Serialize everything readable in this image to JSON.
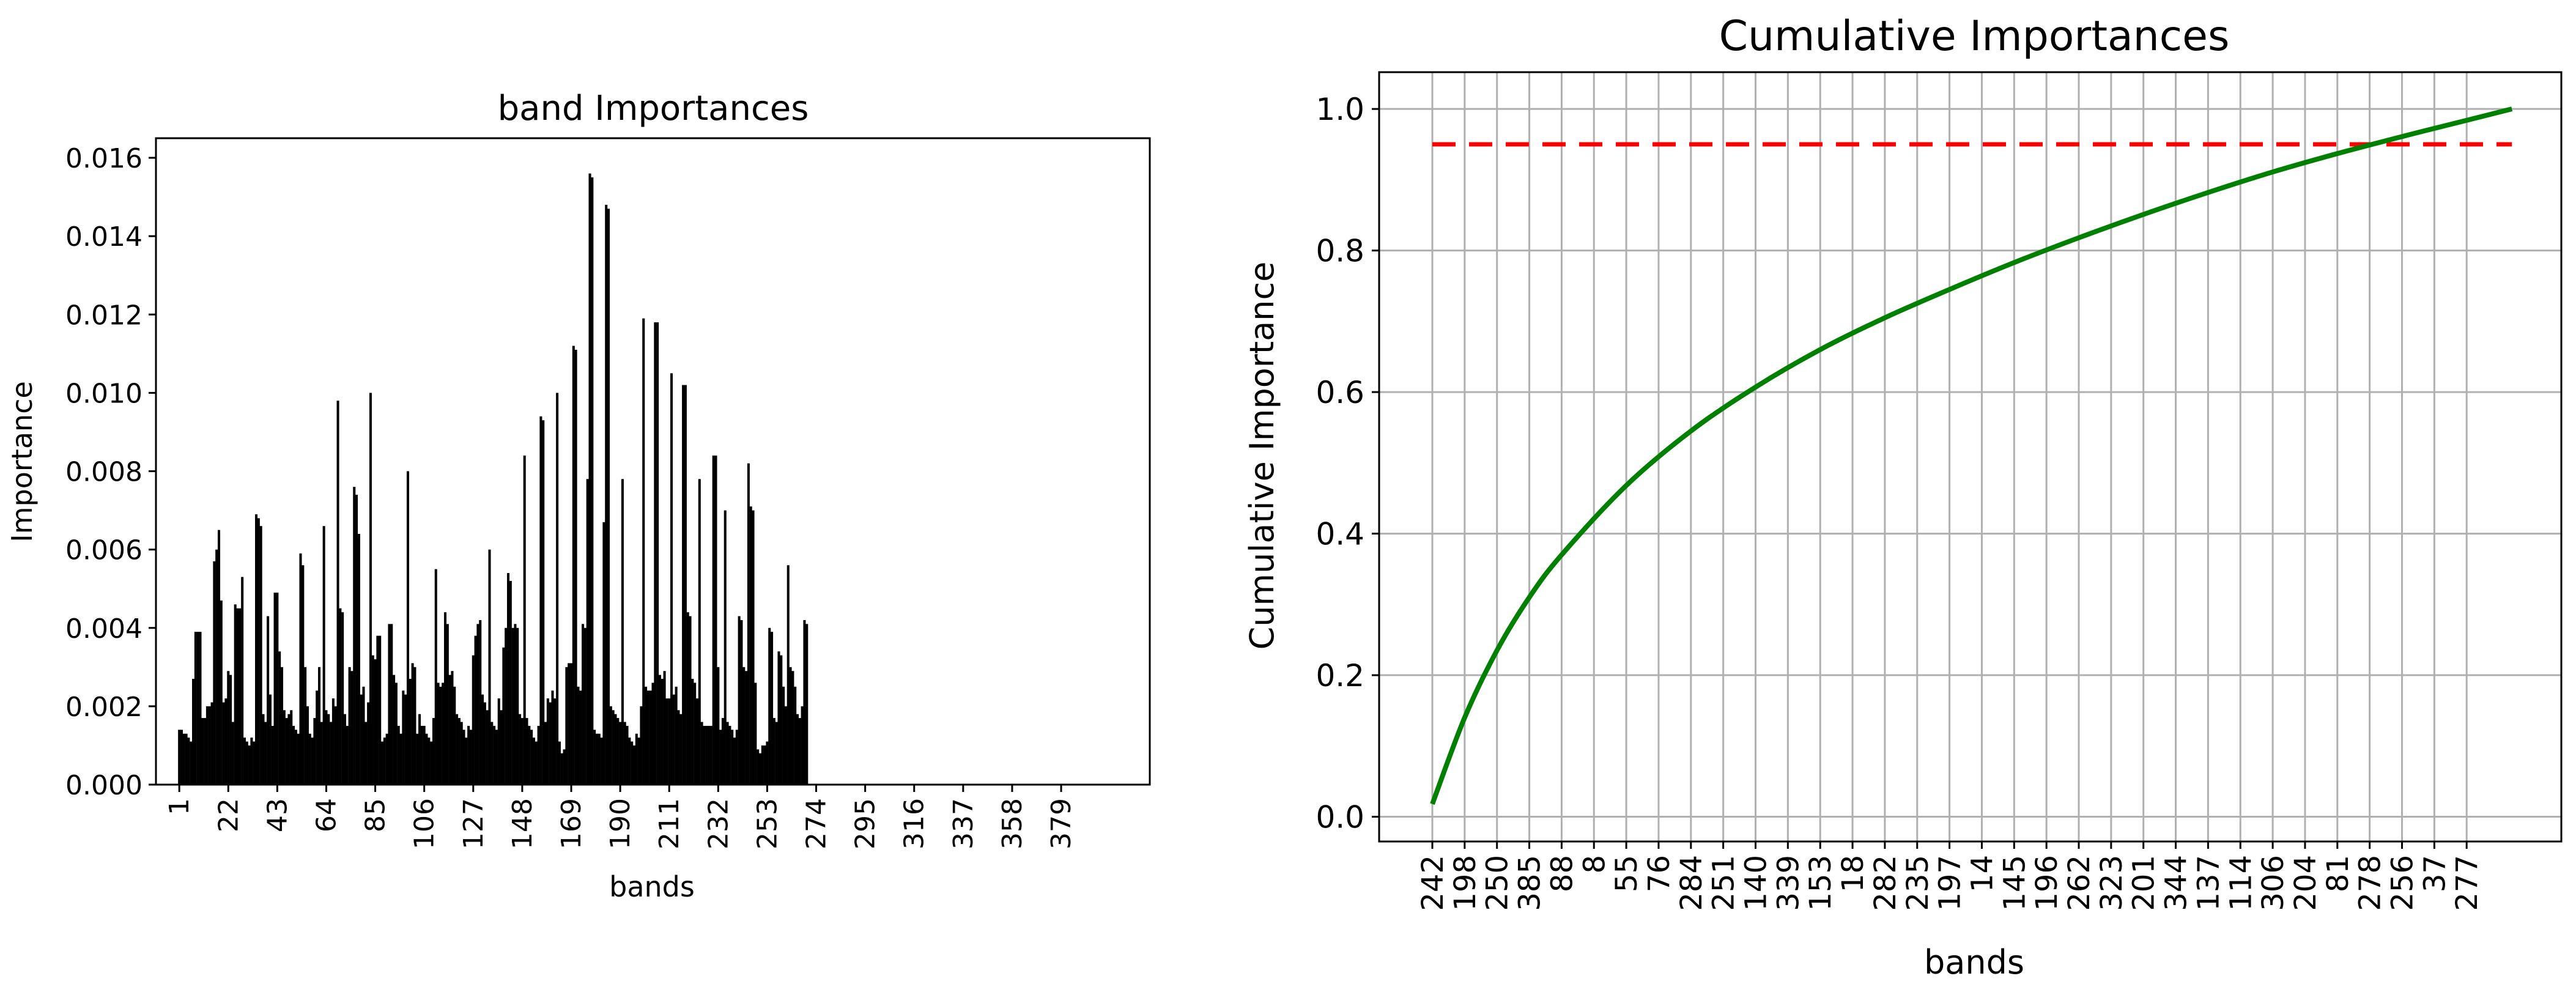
{
  "chart_data": [
    {
      "type": "bar",
      "title": "band Importances",
      "xlabel": "bands",
      "ylabel": "Importance",
      "ylim": [
        0,
        0.0165
      ],
      "xlim": [
        -9,
        417
      ],
      "yticks": [
        0.0,
        0.002,
        0.004,
        0.006,
        0.008,
        0.01,
        0.012,
        0.014,
        0.016
      ],
      "ytick_labels": [
        "0.000",
        "0.002",
        "0.004",
        "0.006",
        "0.008",
        "0.010",
        "0.012",
        "0.014",
        "0.016"
      ],
      "xticks": [
        1,
        22,
        43,
        64,
        85,
        106,
        127,
        148,
        169,
        190,
        211,
        232,
        253,
        274,
        295,
        316,
        337,
        358,
        379
      ],
      "xtick_labels": [
        "1",
        "22",
        "43",
        "64",
        "85",
        "106",
        "127",
        "148",
        "169",
        "190",
        "211",
        "232",
        "253",
        "274",
        "295",
        "316",
        "337",
        "358",
        "379"
      ],
      "bar_color": "#000000",
      "band_start": 1,
      "values": [
        0.0014,
        0.0014,
        0.0013,
        0.0013,
        0.0012,
        0.0011,
        0.0027,
        0.0039,
        0.0039,
        0.0039,
        0.0017,
        0.0017,
        0.002,
        0.002,
        0.0021,
        0.0057,
        0.006,
        0.0065,
        0.0047,
        0.0021,
        0.0022,
        0.0029,
        0.0028,
        0.0016,
        0.0046,
        0.0045,
        0.0045,
        0.0053,
        0.0012,
        0.0011,
        0.001,
        0.0012,
        0.0011,
        0.0069,
        0.0068,
        0.0066,
        0.0018,
        0.0016,
        0.0043,
        0.0023,
        0.0015,
        0.0049,
        0.0049,
        0.0034,
        0.003,
        0.0019,
        0.0017,
        0.0018,
        0.0019,
        0.0015,
        0.0014,
        0.0013,
        0.0059,
        0.0056,
        0.003,
        0.002,
        0.0013,
        0.0012,
        0.0017,
        0.0024,
        0.003,
        0.0016,
        0.0066,
        0.0019,
        0.0018,
        0.0016,
        0.0022,
        0.002,
        0.0098,
        0.0045,
        0.0044,
        0.0018,
        0.0015,
        0.003,
        0.0029,
        0.0076,
        0.0074,
        0.0064,
        0.0023,
        0.0025,
        0.0016,
        0.0021,
        0.01,
        0.0033,
        0.0032,
        0.0038,
        0.0038,
        0.0011,
        0.0012,
        0.0013,
        0.0041,
        0.0041,
        0.0028,
        0.0026,
        0.0015,
        0.0013,
        0.0024,
        0.0023,
        0.008,
        0.0027,
        0.0031,
        0.003,
        0.0013,
        0.0018,
        0.0015,
        0.0015,
        0.0013,
        0.0012,
        0.0011,
        0.0017,
        0.0055,
        0.0026,
        0.0025,
        0.0026,
        0.0044,
        0.0041,
        0.0028,
        0.0029,
        0.0025,
        0.0018,
        0.0017,
        0.0016,
        0.0014,
        0.0012,
        0.0015,
        0.0014,
        0.0033,
        0.0038,
        0.0041,
        0.0042,
        0.0023,
        0.0021,
        0.0019,
        0.006,
        0.0016,
        0.0015,
        0.0014,
        0.0022,
        0.0019,
        0.0035,
        0.004,
        0.0054,
        0.0052,
        0.004,
        0.0041,
        0.004,
        0.0018,
        0.0017,
        0.0084,
        0.0017,
        0.0015,
        0.0014,
        0.0012,
        0.0011,
        0.0015,
        0.0094,
        0.0093,
        0.0016,
        0.0022,
        0.0021,
        0.0024,
        0.0022,
        0.01,
        0.0011,
        0.0008,
        0.0009,
        0.003,
        0.0031,
        0.0031,
        0.0112,
        0.0111,
        0.0025,
        0.0024,
        0.0041,
        0.004,
        0.0078,
        0.0156,
        0.0155,
        0.0014,
        0.0013,
        0.0013,
        0.0012,
        0.0067,
        0.0148,
        0.0147,
        0.002,
        0.0019,
        0.0018,
        0.0017,
        0.0016,
        0.0078,
        0.0016,
        0.0015,
        0.0012,
        0.0011,
        0.001,
        0.0013,
        0.0012,
        0.002,
        0.0119,
        0.0025,
        0.0024,
        0.0024,
        0.0026,
        0.0118,
        0.0118,
        0.0028,
        0.0027,
        0.0029,
        0.0022,
        0.0022,
        0.0105,
        0.0023,
        0.0025,
        0.0019,
        0.0018,
        0.0102,
        0.0102,
        0.0044,
        0.0043,
        0.0027,
        0.0026,
        0.0022,
        0.0078,
        0.0016,
        0.0015,
        0.0015,
        0.0015,
        0.0015,
        0.0084,
        0.0084,
        0.003,
        0.0014,
        0.0017,
        0.007,
        0.0016,
        0.0015,
        0.0014,
        0.0012,
        0.0014,
        0.0043,
        0.0042,
        0.003,
        0.0029,
        0.0082,
        0.0071,
        0.007,
        0.0026,
        0.0009,
        0.0008,
        0.001,
        0.001,
        0.0011,
        0.004,
        0.0039,
        0.0017,
        0.0016,
        0.0034,
        0.0033,
        0.0025,
        0.002,
        0.0056,
        0.003,
        0.0029,
        0.0025,
        0.0018,
        0.0017,
        0.002,
        0.0042,
        0.0041
      ]
    },
    {
      "type": "line",
      "title": "Cumulative Importances",
      "xlabel": "bands",
      "ylabel": "Cumulative Importance",
      "ylim": [
        -0.035,
        1.052
      ],
      "yticks": [
        0.0,
        0.2,
        0.4,
        0.6,
        0.8,
        1.0
      ],
      "ytick_labels": [
        "0.0",
        "0.2",
        "0.4",
        "0.6",
        "0.8",
        "1.0"
      ],
      "grid": true,
      "xtick_labels": [
        "242",
        "198",
        "250",
        "385",
        "88",
        "8",
        "55",
        "76",
        "284",
        "251",
        "140",
        "339",
        "153",
        "18",
        "282",
        "235",
        "197",
        "14",
        "145",
        "196",
        "262",
        "323",
        "201",
        "344",
        "137",
        "114",
        "306",
        "204",
        "81",
        "278",
        "256",
        "37",
        "277"
      ],
      "series": [
        {
          "color": "#008000",
          "x": [
            0,
            1,
            2,
            3,
            4,
            6,
            8,
            10,
            12,
            14,
            16,
            18,
            20,
            22,
            24,
            26,
            28,
            30,
            32,
            33.4
          ],
          "y": [
            0.018,
            0.14,
            0.235,
            0.31,
            0.37,
            0.468,
            0.545,
            0.607,
            0.66,
            0.705,
            0.745,
            0.783,
            0.818,
            0.851,
            0.882,
            0.911,
            0.937,
            0.961,
            0.984,
            1.0
          ]
        }
      ],
      "threshold": {
        "value": 0.95,
        "color": "#ff0000",
        "style": "dashed"
      }
    }
  ]
}
